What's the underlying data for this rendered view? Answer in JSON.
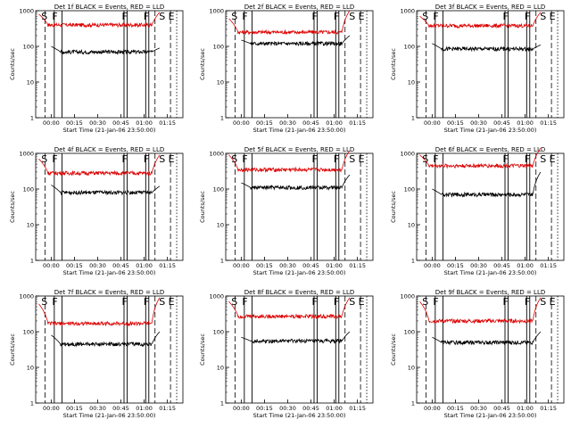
{
  "chart_data": [
    {
      "title": "Det 1f BLACK = Events, RED = LLD",
      "type": "line",
      "xlabel": "Start Time (21-Jan-06 23:50:00)",
      "ylabel": "Counts/sec",
      "scale": "log",
      "ylim": [
        1,
        1000
      ],
      "x_ticks": [
        "00:00",
        "00:15",
        "00:30",
        "00:45",
        "01:00",
        "01:15"
      ],
      "y_ticks": [
        "1",
        "10",
        "100",
        "1000"
      ],
      "markers": [
        "S",
        "F",
        "F",
        "F",
        "S",
        "E"
      ],
      "black_level": 70,
      "red_level": 400,
      "red_start": 800,
      "red_end": 900,
      "black_start": 100,
      "black_end": 90
    },
    {
      "title": "Det 2f BLACK = Events, RED = LLD",
      "type": "line",
      "xlabel": "Start Time (21-Jan-06 23:50:00)",
      "ylabel": "Counts/sec",
      "scale": "log",
      "ylim": [
        1,
        1000
      ],
      "x_ticks": [
        "00:00",
        "00:15",
        "00:30",
        "00:45",
        "01:00",
        "01:15"
      ],
      "y_ticks": [
        "1",
        "10",
        "100",
        "1000"
      ],
      "markers": [
        "S",
        "F",
        "F",
        "F",
        "S",
        "E"
      ],
      "black_level": 120,
      "red_level": 250,
      "red_start": 600,
      "red_end": 1000,
      "black_start": 150,
      "black_end": 200
    },
    {
      "title": "Det 3f BLACK = Events, RED = LLD",
      "type": "line",
      "xlabel": "Start Time (21-Jan-06 23:50:00)",
      "ylabel": "Counts/sec",
      "scale": "log",
      "ylim": [
        1,
        1000
      ],
      "x_ticks": [
        "00:00",
        "00:15",
        "00:30",
        "00:45",
        "01:00",
        "01:15"
      ],
      "y_ticks": [
        "1",
        "10",
        "100",
        "1000"
      ],
      "markers": [
        "S",
        "F",
        "F",
        "F",
        "S",
        "E"
      ],
      "black_level": 85,
      "red_level": 380,
      "red_start": 700,
      "red_end": 900,
      "black_start": 120,
      "black_end": 110
    },
    {
      "title": "Det 4f BLACK = Events, RED = LLD",
      "type": "line",
      "xlabel": "Start Time (21-Jan-06 23:50:00)",
      "ylabel": "Counts/sec",
      "scale": "log",
      "ylim": [
        1,
        1000
      ],
      "x_ticks": [
        "00:00",
        "00:15",
        "00:30",
        "00:45",
        "01:00",
        "01:15"
      ],
      "y_ticks": [
        "1",
        "10",
        "100",
        "1000"
      ],
      "markers": [
        "S",
        "F",
        "F",
        "F",
        "S",
        "E"
      ],
      "black_level": 80,
      "red_level": 280,
      "red_start": 700,
      "red_end": 900,
      "black_start": 130,
      "black_end": 120
    },
    {
      "title": "Det 5f BLACK = Events, RED = LLD",
      "type": "line",
      "xlabel": "Start Time (21-Jan-06 23:50:00)",
      "ylabel": "Counts/sec",
      "scale": "log",
      "ylim": [
        1,
        1000
      ],
      "x_ticks": [
        "00:00",
        "00:15",
        "00:30",
        "00:45",
        "01:00",
        "01:15"
      ],
      "y_ticks": [
        "1",
        "10",
        "100",
        "1000"
      ],
      "markers": [
        "S",
        "F",
        "F",
        "F",
        "S",
        "E"
      ],
      "black_level": 110,
      "red_level": 350,
      "red_start": 900,
      "red_end": 1200,
      "black_start": 150,
      "black_end": 250
    },
    {
      "title": "Det 6f BLACK = Events, RED = LLD",
      "type": "line",
      "xlabel": "Start Time (21-Jan-06 23:50:00)",
      "ylabel": "Counts/sec",
      "scale": "log",
      "ylim": [
        1,
        1000
      ],
      "x_ticks": [
        "00:00",
        "00:15",
        "00:30",
        "00:45",
        "01:00",
        "01:15"
      ],
      "y_ticks": [
        "1",
        "10",
        "100",
        "1000"
      ],
      "markers": [
        "S",
        "F",
        "F",
        "F",
        "S",
        "E"
      ],
      "black_level": 70,
      "red_level": 450,
      "red_start": 900,
      "red_end": 1400,
      "black_start": 100,
      "black_end": 300
    },
    {
      "title": "Det 7f BLACK = Events, RED = LLD",
      "type": "line",
      "xlabel": "Start Time (21-Jan-06 23:50:00)",
      "ylabel": "Counts/sec",
      "scale": "log",
      "ylim": [
        1,
        1000
      ],
      "x_ticks": [
        "00:00",
        "00:15",
        "00:30",
        "00:45",
        "01:00",
        "01:15"
      ],
      "y_ticks": [
        "1",
        "10",
        "100",
        "1000"
      ],
      "markers": [
        "S",
        "F",
        "F",
        "F",
        "S",
        "E"
      ],
      "black_level": 45,
      "red_level": 170,
      "red_start": 600,
      "red_end": 900,
      "black_start": 80,
      "black_end": 100
    },
    {
      "title": "Det 8f BLACK = Events, RED = LLD",
      "type": "line",
      "xlabel": "Start Time (21-Jan-06 23:50:00)",
      "ylabel": "Counts/sec",
      "scale": "log",
      "ylim": [
        1,
        1000
      ],
      "x_ticks": [
        "00:00",
        "00:15",
        "00:30",
        "00:45",
        "01:00",
        "01:15"
      ],
      "y_ticks": [
        "1",
        "10",
        "100",
        "1000"
      ],
      "markers": [
        "S",
        "F",
        "F",
        "F",
        "S",
        "E"
      ],
      "black_level": 55,
      "red_level": 270,
      "red_start": 700,
      "red_end": 900,
      "black_start": 70,
      "black_end": 100
    },
    {
      "title": "Det 9f BLACK = Events, RED = LLD",
      "type": "line",
      "xlabel": "Start Time (21-Jan-06 23:50:00)",
      "ylabel": "Counts/sec",
      "scale": "log",
      "ylim": [
        1,
        1000
      ],
      "x_ticks": [
        "00:00",
        "00:15",
        "00:30",
        "00:45",
        "01:00",
        "01:15"
      ],
      "y_ticks": [
        "1",
        "10",
        "100",
        "1000"
      ],
      "markers": [
        "S",
        "F",
        "F",
        "F",
        "S",
        "E"
      ],
      "black_level": 50,
      "red_level": 200,
      "red_start": 700,
      "red_end": 900,
      "black_start": 70,
      "black_end": 100
    }
  ],
  "colors": {
    "events": "#000000",
    "lld": "#dd0000"
  }
}
